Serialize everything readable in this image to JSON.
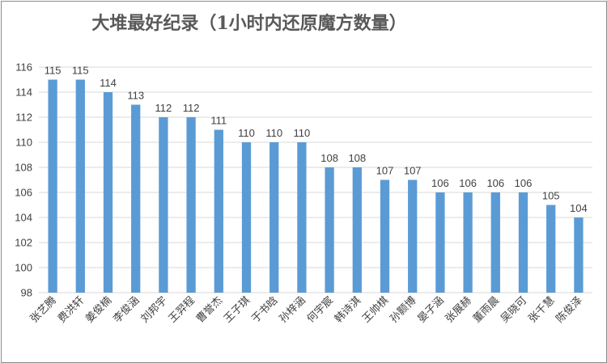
{
  "chart_data": {
    "type": "bar",
    "title": "大堆最好纪录（1小时内还原魔方数量）",
    "categories": [
      "张艺腾",
      "费洪轩",
      "姜俊楠",
      "李俊涵",
      "刘邦宇",
      "王羿程",
      "曹誉杰",
      "王子琪",
      "于书晗",
      "孙梓涵",
      "何宇宸",
      "韩诗淇",
      "王帅棋",
      "孙颢博",
      "晏子涵",
      "张展赫",
      "董雨晨",
      "吴晓可",
      "张千慧",
      "陈俊泽"
    ],
    "values": [
      115,
      115,
      114,
      113,
      112,
      112,
      111,
      110,
      110,
      110,
      108,
      108,
      107,
      107,
      106,
      106,
      106,
      106,
      105,
      104
    ],
    "ylim": [
      98,
      116
    ],
    "yticks": [
      98,
      100,
      102,
      104,
      106,
      108,
      110,
      112,
      114,
      116
    ],
    "grid": true,
    "bar_color": "#5b9bd5",
    "legend": "none"
  }
}
